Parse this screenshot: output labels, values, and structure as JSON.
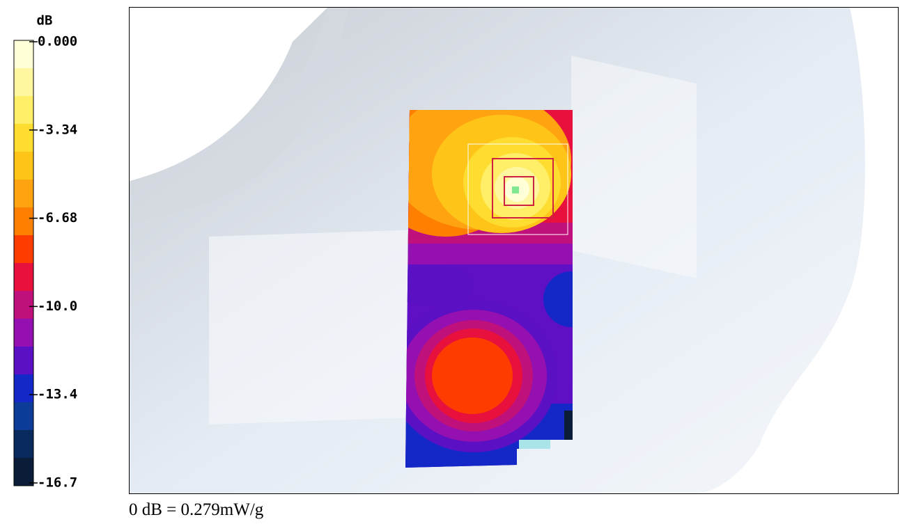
{
  "colorbar": {
    "unit": "dB",
    "tick_labels": [
      "0.000",
      "-3.34",
      "-6.68",
      "-10.0",
      "-13.4",
      "-16.7"
    ],
    "colors": [
      "#ffffd8",
      "#fff6a0",
      "#ffee68",
      "#ffdc30",
      "#ffc418",
      "#ffa410",
      "#ff8000",
      "#ff3c00",
      "#e8103c",
      "#c0107c",
      "#9410b0",
      "#5c10c4",
      "#1428c8",
      "#0c3c98",
      "#082a5c",
      "#0a1c38"
    ]
  },
  "caption": "0 dB = 0.279mW/g"
}
